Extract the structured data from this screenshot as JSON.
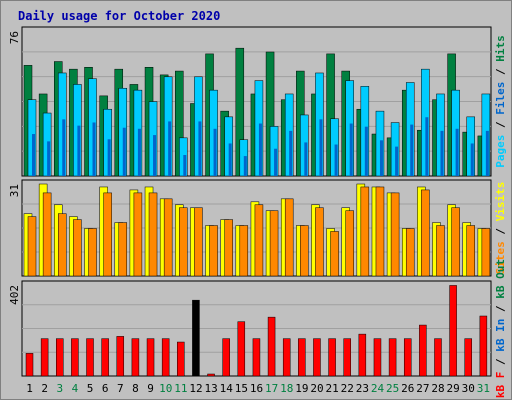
{
  "chart_data": {
    "type": "bar",
    "title": "Daily usage for October 2020",
    "categories": [
      "1",
      "2",
      "3",
      "4",
      "5",
      "6",
      "7",
      "8",
      "9",
      "10",
      "11",
      "12",
      "13",
      "14",
      "15",
      "16",
      "17",
      "18",
      "19",
      "20",
      "21",
      "22",
      "23",
      "24",
      "25",
      "26",
      "27",
      "28",
      "29",
      "30",
      "31"
    ],
    "weekend_days": [
      3,
      4,
      10,
      11,
      17,
      18,
      24,
      25,
      31
    ],
    "panels": [
      {
        "name": "hits-files-pages",
        "max_label": "76",
        "ylim": [
          0,
          76
        ],
        "side_label": [
          {
            "text": "Pages",
            "color": "#00ccff"
          },
          {
            "text": " / ",
            "color": "#000000"
          },
          {
            "text": "Files",
            "color": "#0066cc"
          },
          {
            "text": " / ",
            "color": "#000000"
          },
          {
            "text": "Hits",
            "color": "#008040"
          }
        ],
        "series": [
          {
            "name": "Hits",
            "color": "#008040",
            "values": [
              58,
              43,
              60,
              56,
              57,
              42,
              56,
              48,
              57,
              53,
              55,
              38,
              64,
              34,
              67,
              43,
              65,
              40,
              55,
              43,
              64,
              55,
              35,
              22,
              20,
              45,
              24,
              40,
              64,
              23,
              21
            ]
          },
          {
            "name": "Files",
            "color": "#0066cc",
            "values": [
              40,
              33,
              54,
              48,
              51,
              35,
              46,
              45,
              39,
              52,
              20,
              52,
              45,
              31,
              19,
              50,
              26,
              43,
              32,
              54,
              30,
              50,
              47,
              34,
              28,
              49,
              56,
              43,
              45,
              31,
              43
            ]
          },
          {
            "name": "Pages",
            "color": "#00ccff",
            "values": [
              40,
              33,
              54,
              48,
              51,
              35,
              46,
              45,
              39,
              52,
              20,
              52,
              45,
              31,
              19,
              50,
              26,
              43,
              32,
              54,
              30,
              50,
              47,
              34,
              28,
              49,
              56,
              43,
              45,
              31,
              43
            ]
          }
        ]
      },
      {
        "name": "visits-sites",
        "max_label": "31",
        "ylim": [
          0,
          31
        ],
        "side_label": [
          {
            "text": "Sites",
            "color": "#ff8800"
          },
          {
            "text": " / ",
            "color": "#000000"
          },
          {
            "text": "Visits",
            "color": "#ffff00"
          }
        ],
        "series": [
          {
            "name": "Visits",
            "color": "#ffff00",
            "values": [
              21,
              31,
              24,
              20,
              16,
              30,
              18,
              29,
              30,
              26,
              24,
              23,
              17,
              19,
              17,
              25,
              22,
              26,
              17,
              24,
              16,
              23,
              31,
              30,
              28,
              16,
              30,
              18,
              24,
              18,
              16
            ]
          },
          {
            "name": "Sites",
            "color": "#ff8800",
            "values": [
              20,
              28,
              21,
              19,
              16,
              28,
              18,
              28,
              28,
              26,
              23,
              23,
              17,
              19,
              17,
              24,
              22,
              26,
              17,
              23,
              15,
              22,
              30,
              30,
              28,
              16,
              29,
              17,
              23,
              17,
              16
            ]
          }
        ]
      },
      {
        "name": "kbf-kbin-kbout",
        "max_label": "402",
        "ylim": [
          0,
          402
        ],
        "side_label": [
          {
            "text": "kB F",
            "color": "#ff0000"
          },
          {
            "text": " / ",
            "color": "#000000"
          },
          {
            "text": "kB In",
            "color": "#0066cc"
          },
          {
            "text": " / ",
            "color": "#000000"
          },
          {
            "text": "kB Out",
            "color": "#008040"
          }
        ],
        "series": [
          {
            "name": "kB F",
            "color": "#ff0000",
            "values": [
              100,
              165,
              165,
              165,
              165,
              165,
              175,
              165,
              165,
              165,
              150,
              335,
              8,
              165,
              240,
              165,
              260,
              165,
              165,
              165,
              165,
              165,
              185,
              165,
              165,
              165,
              225,
              165,
              400,
              165,
              265
            ]
          }
        ]
      }
    ]
  }
}
